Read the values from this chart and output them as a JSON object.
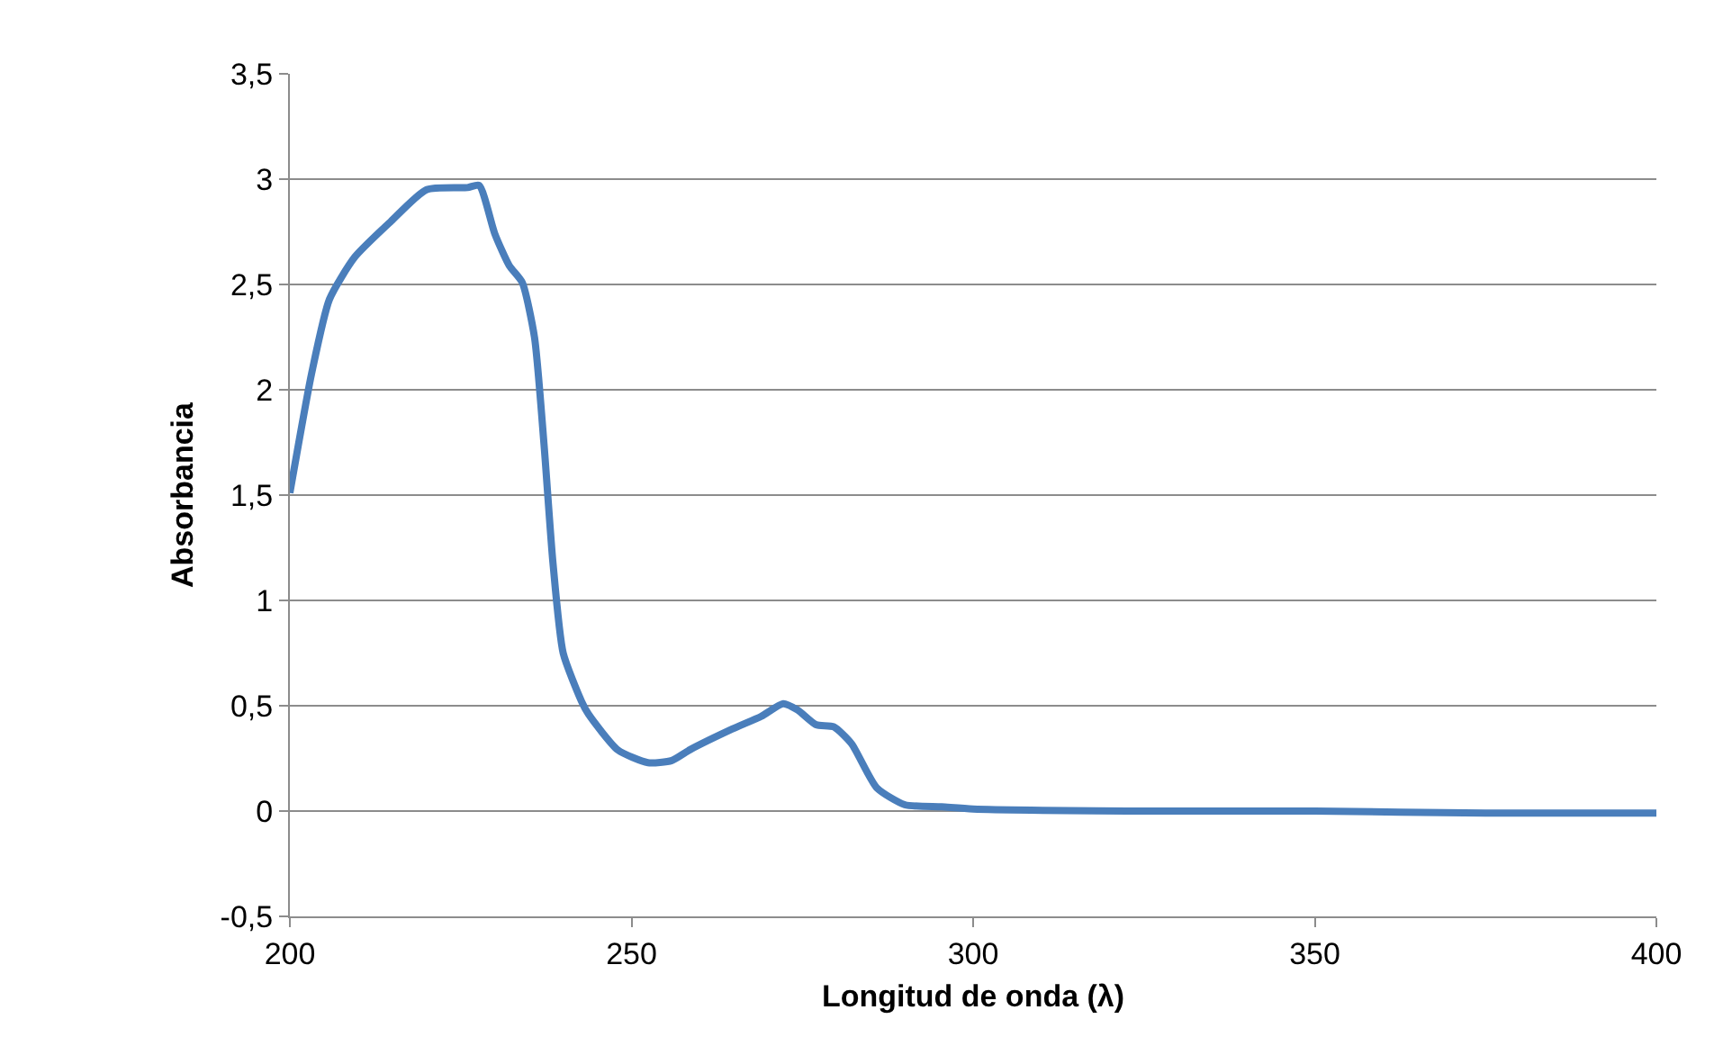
{
  "chart_data": {
    "type": "line",
    "xlabel": "Longitud de onda (λ)",
    "ylabel": "Absorbancia",
    "xlim": [
      200,
      400
    ],
    "xticks": [
      200,
      250,
      300,
      350,
      400
    ],
    "ylim": [
      -0.5,
      3.5
    ],
    "yticks": [
      {
        "value": -0.5,
        "label": "-0,5"
      },
      0,
      {
        "value": 0.5,
        "label": "0,5"
      },
      1,
      {
        "value": 1.5,
        "label": "1,5"
      },
      2,
      {
        "value": 2.5,
        "label": "2,5"
      },
      3,
      {
        "value": 3.5,
        "label": "3,5"
      }
    ],
    "grid": "y",
    "marker": "none",
    "line_style": "solid",
    "series": [
      {
        "color": "#4a7ebb",
        "x": [
          200,
          203.2,
          205.8,
          209.5,
          214.8,
          220,
          226,
          227.7,
          230,
          232.1,
          234,
          235.8,
          237.2,
          238.5,
          240,
          242.7,
          243.7,
          248,
          252.4,
          255.9,
          258.5,
          264.8,
          269,
          272.2,
          274.3,
          277,
          279.6,
          282.2,
          285.9,
          290,
          295.4,
          300,
          325,
          350,
          375,
          400
        ],
        "values": [
          1.51,
          2.08,
          2.43,
          2.63,
          2.8,
          2.95,
          2.96,
          2.97,
          2.74,
          2.59,
          2.51,
          2.25,
          1.74,
          1.18,
          0.75,
          0.52,
          0.46,
          0.29,
          0.23,
          0.24,
          0.29,
          0.39,
          0.45,
          0.51,
          0.48,
          0.41,
          0.4,
          0.32,
          0.11,
          0.03,
          0.02,
          0.01,
          0.0,
          0.0,
          -0.01,
          -0.01
        ]
      }
    ]
  }
}
